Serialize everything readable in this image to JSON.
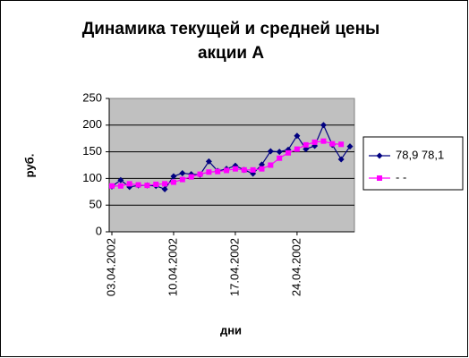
{
  "chart_data": {
    "type": "line",
    "title": [
      "Динамика текущей и средней цены",
      "акции А"
    ],
    "y_label": "руб.",
    "x_label": "дни",
    "categories": [
      "03.04.2002",
      null,
      null,
      null,
      null,
      null,
      null,
      "10.04.2002",
      null,
      null,
      null,
      null,
      null,
      null,
      "17.04.2002",
      null,
      null,
      null,
      null,
      null,
      null,
      "24.04.2002",
      null,
      null,
      null,
      null,
      null,
      null
    ],
    "series": [
      {
        "name": "78,9 78,1",
        "color": "#000080",
        "marker": "diamond",
        "values": [
          85,
          97,
          84,
          87,
          87,
          86,
          80,
          104,
          110,
          108,
          107,
          132,
          114,
          118,
          124,
          116,
          109,
          126,
          151,
          150,
          154,
          180,
          155,
          161,
          200,
          163,
          136,
          160
        ]
      },
      {
        "name": "- -",
        "color": "#ff00ff",
        "marker": "square",
        "values": [
          86,
          86,
          90,
          88,
          87,
          89,
          90,
          93,
          98,
          103,
          108,
          112,
          113,
          115,
          118,
          116,
          116,
          118,
          125,
          138,
          148,
          155,
          163,
          168,
          170,
          165,
          164,
          null
        ]
      }
    ],
    "ylim": [
      0,
      250
    ],
    "yticks": [
      0,
      50,
      100,
      150,
      200,
      250
    ],
    "grid": true,
    "legend": "right"
  }
}
